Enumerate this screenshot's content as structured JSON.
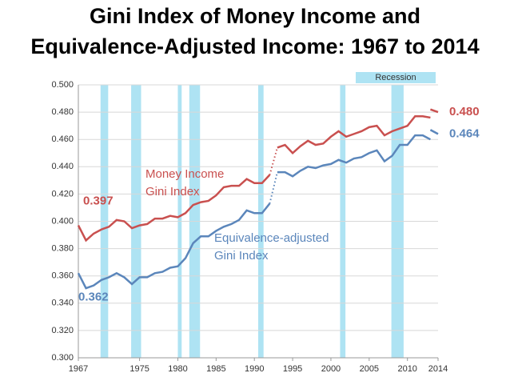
{
  "chart_data": {
    "type": "line",
    "title": [
      "Gini Index of Money Income and",
      "Equivalence-Adjusted Income:  1967 to 2014"
    ],
    "xlim": [
      1967,
      2014
    ],
    "xticks": [
      1967,
      1975,
      1980,
      1985,
      1990,
      1995,
      2000,
      2005,
      2010,
      2014
    ],
    "ylim": [
      0.3,
      0.5
    ],
    "yticks": [
      {
        "value": 0.3,
        "label": "0.300"
      },
      {
        "value": 0.32,
        "label": "0.320"
      },
      {
        "value": 0.34,
        "label": "0.340"
      },
      {
        "value": 0.36,
        "label": "0.360"
      },
      {
        "value": 0.38,
        "label": "0.380"
      },
      {
        "value": 0.4,
        "label": "0.400"
      },
      {
        "value": 0.42,
        "label": "0.420"
      },
      {
        "value": 0.44,
        "label": "0.440"
      },
      {
        "value": 0.46,
        "label": "0.460"
      },
      {
        "value": 0.48,
        "label": "0.480"
      },
      {
        "value": 0.5,
        "label": "0.500"
      }
    ],
    "grid": true,
    "recession_label": "Recession",
    "recession_color": "#aee3f3",
    "recessions": [
      [
        1969.9,
        1970.9
      ],
      [
        1973.9,
        1975.2
      ],
      [
        1980.0,
        1980.5
      ],
      [
        1981.5,
        1982.9
      ],
      [
        1990.5,
        1991.2
      ],
      [
        2001.2,
        2001.9
      ],
      [
        2007.9,
        2009.5
      ]
    ],
    "series": [
      {
        "name": [
          "Money Income",
          "Gini Index"
        ],
        "color": "#c9504f",
        "dotted_after": 1992,
        "x": [
          1967,
          1968,
          1969,
          1970,
          1971,
          1972,
          1973,
          1974,
          1975,
          1976,
          1977,
          1978,
          1979,
          1980,
          1981,
          1982,
          1983,
          1984,
          1985,
          1986,
          1987,
          1988,
          1989,
          1990,
          1991,
          1992,
          1993,
          1994,
          1995,
          1996,
          1997,
          1998,
          1999,
          2000,
          2001,
          2002,
          2003,
          2004,
          2005,
          2006,
          2007,
          2008,
          2009,
          2010,
          2011,
          2012,
          2013
        ],
        "values": [
          0.397,
          0.386,
          0.391,
          0.394,
          0.396,
          0.401,
          0.4,
          0.395,
          0.397,
          0.398,
          0.402,
          0.402,
          0.404,
          0.403,
          0.406,
          0.412,
          0.414,
          0.415,
          0.419,
          0.425,
          0.426,
          0.426,
          0.431,
          0.428,
          0.428,
          0.434,
          0.454,
          0.456,
          0.45,
          0.455,
          0.459,
          0.456,
          0.457,
          0.462,
          0.466,
          0.462,
          0.464,
          0.466,
          0.469,
          0.47,
          0.463,
          0.466,
          0.468,
          0.47,
          0.477,
          0.477,
          0.476
        ],
        "value_labels": [
          "0.397",
          null,
          null,
          null,
          null,
          null,
          null,
          null,
          null,
          null,
          null,
          null,
          null,
          null,
          null,
          null,
          null,
          null,
          null,
          null,
          null,
          null,
          null,
          null,
          null,
          null,
          null,
          null,
          null,
          null,
          null,
          null,
          null,
          null,
          null,
          null,
          null,
          null,
          null,
          null,
          null,
          null,
          null,
          null,
          null,
          null,
          null
        ]
      },
      {
        "color": "#c9504f",
        "x": [
          2013,
          2014
        ],
        "values": [
          0.482,
          0.48
        ],
        "value_labels": [
          null,
          "0.480"
        ]
      },
      {
        "name": [
          "Equivalence-adjusted",
          "Gini Index"
        ],
        "color": "#5b86bb",
        "dotted_after": 1992,
        "x": [
          1967,
          1968,
          1969,
          1970,
          1971,
          1972,
          1973,
          1974,
          1975,
          1976,
          1977,
          1978,
          1979,
          1980,
          1981,
          1982,
          1983,
          1984,
          1985,
          1986,
          1987,
          1988,
          1989,
          1990,
          1991,
          1992,
          1993,
          1994,
          1995,
          1996,
          1997,
          1998,
          1999,
          2000,
          2001,
          2002,
          2003,
          2004,
          2005,
          2006,
          2007,
          2008,
          2009,
          2010,
          2011,
          2012,
          2013
        ],
        "values": [
          0.362,
          0.351,
          0.353,
          0.357,
          0.359,
          0.362,
          0.359,
          0.354,
          0.359,
          0.359,
          0.362,
          0.363,
          0.366,
          0.367,
          0.373,
          0.384,
          0.389,
          0.389,
          0.393,
          0.396,
          0.398,
          0.401,
          0.408,
          0.406,
          0.406,
          0.413,
          0.436,
          0.436,
          0.433,
          0.437,
          0.44,
          0.439,
          0.441,
          0.442,
          0.445,
          0.443,
          0.446,
          0.447,
          0.45,
          0.452,
          0.444,
          0.448,
          0.456,
          0.456,
          0.463,
          0.463,
          0.46
        ],
        "value_labels": [
          "0.362",
          null,
          null,
          null,
          null,
          null,
          null,
          null,
          null,
          null,
          null,
          null,
          null,
          null,
          null,
          null,
          null,
          null,
          null,
          null,
          null,
          null,
          null,
          null,
          null,
          null,
          null,
          null,
          null,
          null,
          null,
          null,
          null,
          null,
          null,
          null,
          null,
          null,
          null,
          null,
          null,
          null,
          null,
          null,
          null,
          null,
          null
        ]
      },
      {
        "color": "#5b86bb",
        "x": [
          2013,
          2014
        ],
        "values": [
          0.467,
          0.464
        ],
        "value_labels": [
          null,
          "0.464"
        ]
      }
    ]
  }
}
